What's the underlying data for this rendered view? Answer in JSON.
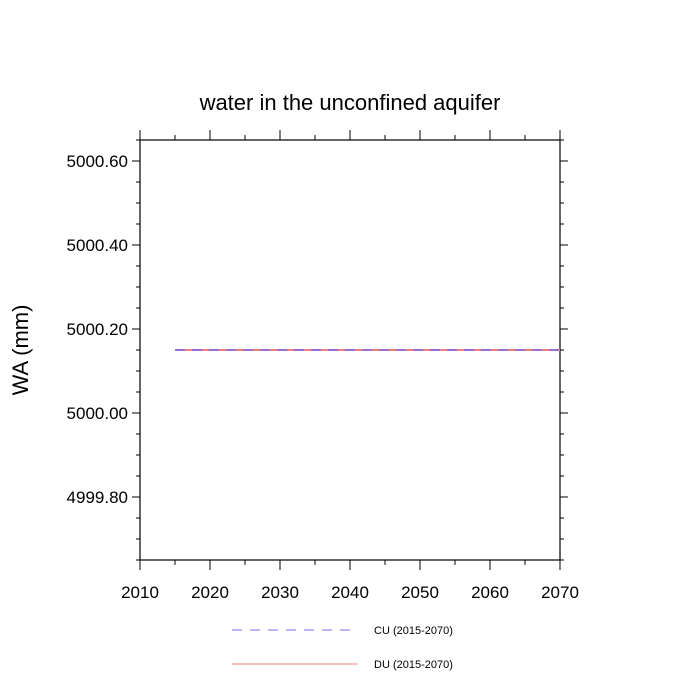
{
  "chart_data": {
    "type": "line",
    "title": "water in the unconfined aquifer",
    "xlabel": "",
    "ylabel": "WA  (mm)",
    "xlim": [
      2010,
      2070
    ],
    "ylim": [
      4999.65,
      5000.65
    ],
    "x_ticks": [
      2010,
      2020,
      2030,
      2040,
      2050,
      2060,
      2070
    ],
    "x_tick_labels": [
      "2010",
      "2020",
      "2030",
      "2040",
      "2050",
      "2060",
      "2070"
    ],
    "y_ticks": [
      4999.8,
      5000.0,
      5000.2,
      5000.4,
      5000.6
    ],
    "y_tick_labels": [
      "4999.80",
      "5000.00",
      "5000.20",
      "5000.40",
      "5000.60"
    ],
    "grid": false,
    "legend_position": "bottom",
    "series": [
      {
        "name": "CU (2015-2070)",
        "color": "#7b68ee",
        "dash": "dashed",
        "x": [
          2015,
          2070
        ],
        "y": [
          5000.15,
          5000.15
        ]
      },
      {
        "name": "DU (2015-2070)",
        "color": "#f08080",
        "dash": "solid",
        "x": [
          2015,
          2070
        ],
        "y": [
          5000.15,
          5000.15
        ]
      }
    ]
  }
}
